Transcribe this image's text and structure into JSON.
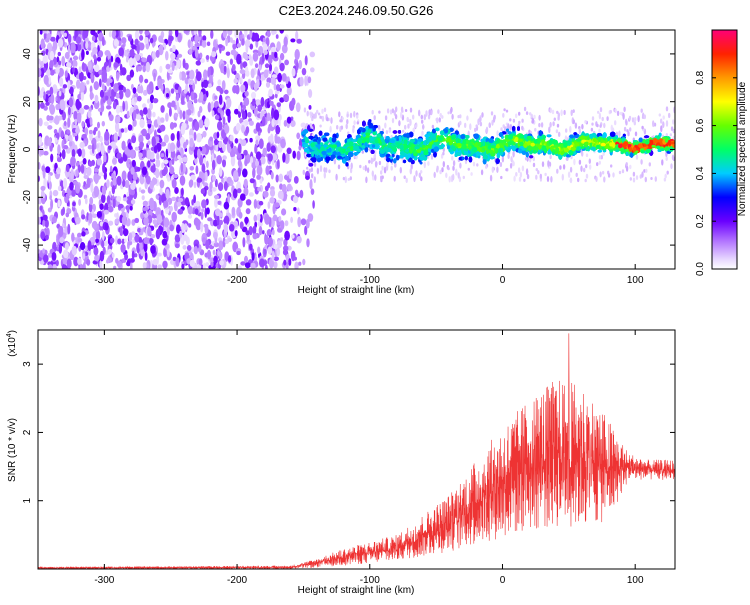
{
  "title": "C2E3.2024.246.09.50.G26",
  "chart_data": [
    {
      "type": "heatmap",
      "xlabel": "Height of straight line (km)",
      "ylabel": "Frequency (Hz)",
      "xlim": [
        -350,
        130
      ],
      "ylim": [
        -50,
        50
      ],
      "xticks": [
        -300,
        -200,
        -100,
        0,
        100
      ],
      "xtick_labels": [
        "-300",
        "-200",
        "-100",
        "0",
        "100"
      ],
      "yticks": [
        -40,
        -20,
        0,
        20,
        40
      ],
      "ytick_labels": [
        "-40",
        "-20",
        "0",
        "20",
        "40"
      ],
      "colorbar": {
        "label": "Normalized spectral amplitude",
        "range": [
          0,
          1
        ],
        "ticks": [
          0.0,
          0.2,
          0.4,
          0.6,
          0.8
        ],
        "tick_labels": [
          "0.0",
          "0.2",
          "0.4",
          "0.6",
          "0.8"
        ]
      },
      "features": {
        "noise_region_x": [
          -350,
          -150
        ],
        "signal_band_start_x": -150,
        "signal_center_freq_hz": 2,
        "signal_band_halfwidth_hz_at_start": 9,
        "signal_band_halfwidth_hz_at_end": 4,
        "peak_amplitude_region_x": [
          85,
          130
        ]
      }
    },
    {
      "type": "line",
      "xlabel": "Height of straight line (km)",
      "ylabel": "SNR (10 * v/v)",
      "y_multiplier": "(x10",
      "y_multiplier_exp": "4",
      "y_multiplier_close": ")",
      "xlim": [
        -350,
        130
      ],
      "ylim": [
        0,
        3.5
      ],
      "xticks": [
        -300,
        -200,
        -100,
        0,
        100
      ],
      "xtick_labels": [
        "-300",
        "-200",
        "-100",
        "0",
        "100"
      ],
      "yticks": [
        1,
        2,
        3
      ],
      "ytick_labels": [
        "1",
        "2",
        "3"
      ],
      "series": [
        {
          "name": "SNR",
          "color": "#ee3333",
          "x": [
            -350,
            -250,
            -160,
            -140,
            -120,
            -100,
            -80,
            -60,
            -40,
            -20,
            0,
            20,
            40,
            60,
            80,
            95,
            110,
            130
          ],
          "y_low": [
            0.0,
            0.0,
            0.0,
            0.02,
            0.05,
            0.08,
            0.12,
            0.18,
            0.25,
            0.35,
            0.45,
            0.55,
            0.6,
            0.6,
            0.7,
            1.3,
            1.3,
            1.3
          ],
          "y_high": [
            0.03,
            0.04,
            0.05,
            0.15,
            0.3,
            0.4,
            0.5,
            0.8,
            1.1,
            1.6,
            2.1,
            2.5,
            2.8,
            2.7,
            2.2,
            1.7,
            1.6,
            1.6
          ],
          "max_spike": {
            "x": 50,
            "y": 3.45
          }
        }
      ]
    }
  ]
}
